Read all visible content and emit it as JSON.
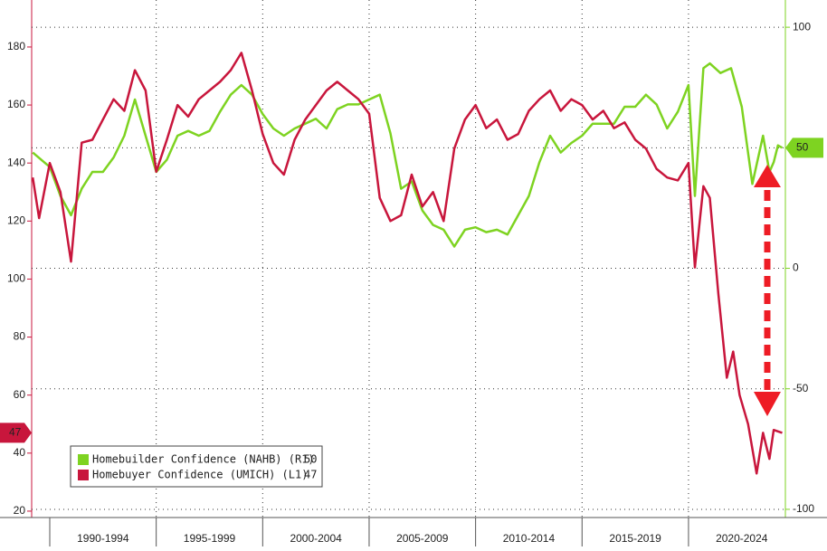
{
  "chart_data": {
    "type": "line",
    "xlim": [
      1989.15,
      2024.55
    ],
    "xticks": [
      {
        "value": 1992.5,
        "label": "1990-1994"
      },
      {
        "value": 1997.5,
        "label": "1995-1999"
      },
      {
        "value": 2002.5,
        "label": "2000-2004"
      },
      {
        "value": 2007.5,
        "label": "2005-2009"
      },
      {
        "value": 2012.5,
        "label": "2010-2014"
      },
      {
        "value": 2017.5,
        "label": "2015-2019"
      },
      {
        "value": 2022.5,
        "label": "2020-2024"
      }
    ],
    "ylim": [
      17.8,
      196.2
    ],
    "yticks": [
      20,
      40,
      60,
      80,
      100,
      120,
      140,
      160,
      180
    ],
    "y2lim": [
      -103.4,
      111.3
    ],
    "y2ticks": [
      -100,
      -50,
      0,
      50,
      100
    ],
    "grid": true,
    "legend": "lower left",
    "series": [
      {
        "name": "Homebuilder Confidence (NAHB) (R1)",
        "color": "#7ed321",
        "axis": "y2",
        "x": [
          1989.2,
          1990,
          1990.5,
          1991,
          1991.5,
          1992,
          1992.5,
          1993,
          1993.5,
          1994,
          1994.5,
          1995,
          1995.5,
          1996,
          1996.5,
          1997,
          1997.5,
          1998,
          1998.5,
          1999,
          1999.5,
          2000,
          2000.5,
          2001,
          2001.5,
          2002,
          2002.5,
          2003,
          2003.5,
          2004,
          2004.5,
          2005,
          2005.5,
          2006,
          2006.5,
          2007,
          2007.5,
          2008,
          2008.5,
          2009,
          2009.5,
          2010,
          2010.5,
          2011,
          2011.5,
          2012,
          2012.5,
          2013,
          2013.5,
          2014,
          2014.5,
          2015,
          2015.5,
          2016,
          2016.5,
          2017,
          2017.5,
          2018,
          2018.5,
          2019,
          2019.5,
          2020,
          2020.3,
          2020.7,
          2021,
          2021.5,
          2022,
          2022.5,
          2023,
          2023.5,
          2023.8,
          2024,
          2024.2,
          2024.4
        ],
        "values": [
          48,
          42,
          30,
          22,
          33,
          40,
          40,
          46,
          55,
          70,
          55,
          40,
          45,
          55,
          57,
          55,
          57,
          65,
          72,
          76,
          72,
          64,
          58,
          55,
          58,
          60,
          62,
          58,
          66,
          68,
          68,
          70,
          72,
          56,
          33,
          36,
          24,
          18,
          16,
          9,
          16,
          17,
          15,
          16,
          14,
          22,
          30,
          44,
          55,
          48,
          52,
          55,
          60,
          60,
          60,
          67,
          67,
          72,
          68,
          58,
          65,
          76,
          30,
          83,
          85,
          81,
          83,
          67,
          35,
          55,
          40,
          44,
          51,
          50
        ]
      },
      {
        "name": "Homebuyer Confidence (UMICH) (L1)",
        "color": "#c8163c",
        "x": [
          1989.2,
          1989.5,
          1990,
          1990.5,
          1991,
          1991.5,
          1992,
          1992.5,
          1993,
          1993.5,
          1994,
          1994.5,
          1995,
          1995.5,
          1996,
          1996.5,
          1997,
          1997.5,
          1998,
          1998.5,
          1999,
          1999.5,
          2000,
          2000.5,
          2001,
          2001.5,
          2002,
          2002.5,
          2003,
          2003.5,
          2004,
          2004.5,
          2005,
          2005.5,
          2006,
          2006.5,
          2007,
          2007.5,
          2008,
          2008.5,
          2009,
          2009.5,
          2010,
          2010.5,
          2011,
          2011.5,
          2012,
          2012.5,
          2013,
          2013.5,
          2014,
          2014.5,
          2015,
          2015.5,
          2016,
          2016.5,
          2017,
          2017.5,
          2018,
          2018.5,
          2019,
          2019.5,
          2020,
          2020.3,
          2020.7,
          2021,
          2021.4,
          2021.8,
          2022.1,
          2022.4,
          2022.8,
          2023.2,
          2023.5,
          2023.8,
          2024,
          2024.4
        ],
        "values": [
          135,
          121,
          140,
          130,
          106,
          147,
          148,
          155,
          162,
          158,
          172,
          165,
          137,
          148,
          160,
          156,
          162,
          165,
          168,
          172,
          178,
          165,
          150,
          140,
          136,
          148,
          155,
          160,
          165,
          168,
          165,
          162,
          157,
          128,
          120,
          122,
          136,
          125,
          130,
          120,
          145,
          155,
          160,
          152,
          155,
          148,
          150,
          158,
          162,
          165,
          158,
          162,
          160,
          155,
          158,
          152,
          154,
          148,
          145,
          138,
          135,
          134,
          140,
          104,
          132,
          128,
          95,
          66,
          75,
          60,
          50,
          33,
          47,
          38,
          48,
          47
        ]
      }
    ]
  }
}
